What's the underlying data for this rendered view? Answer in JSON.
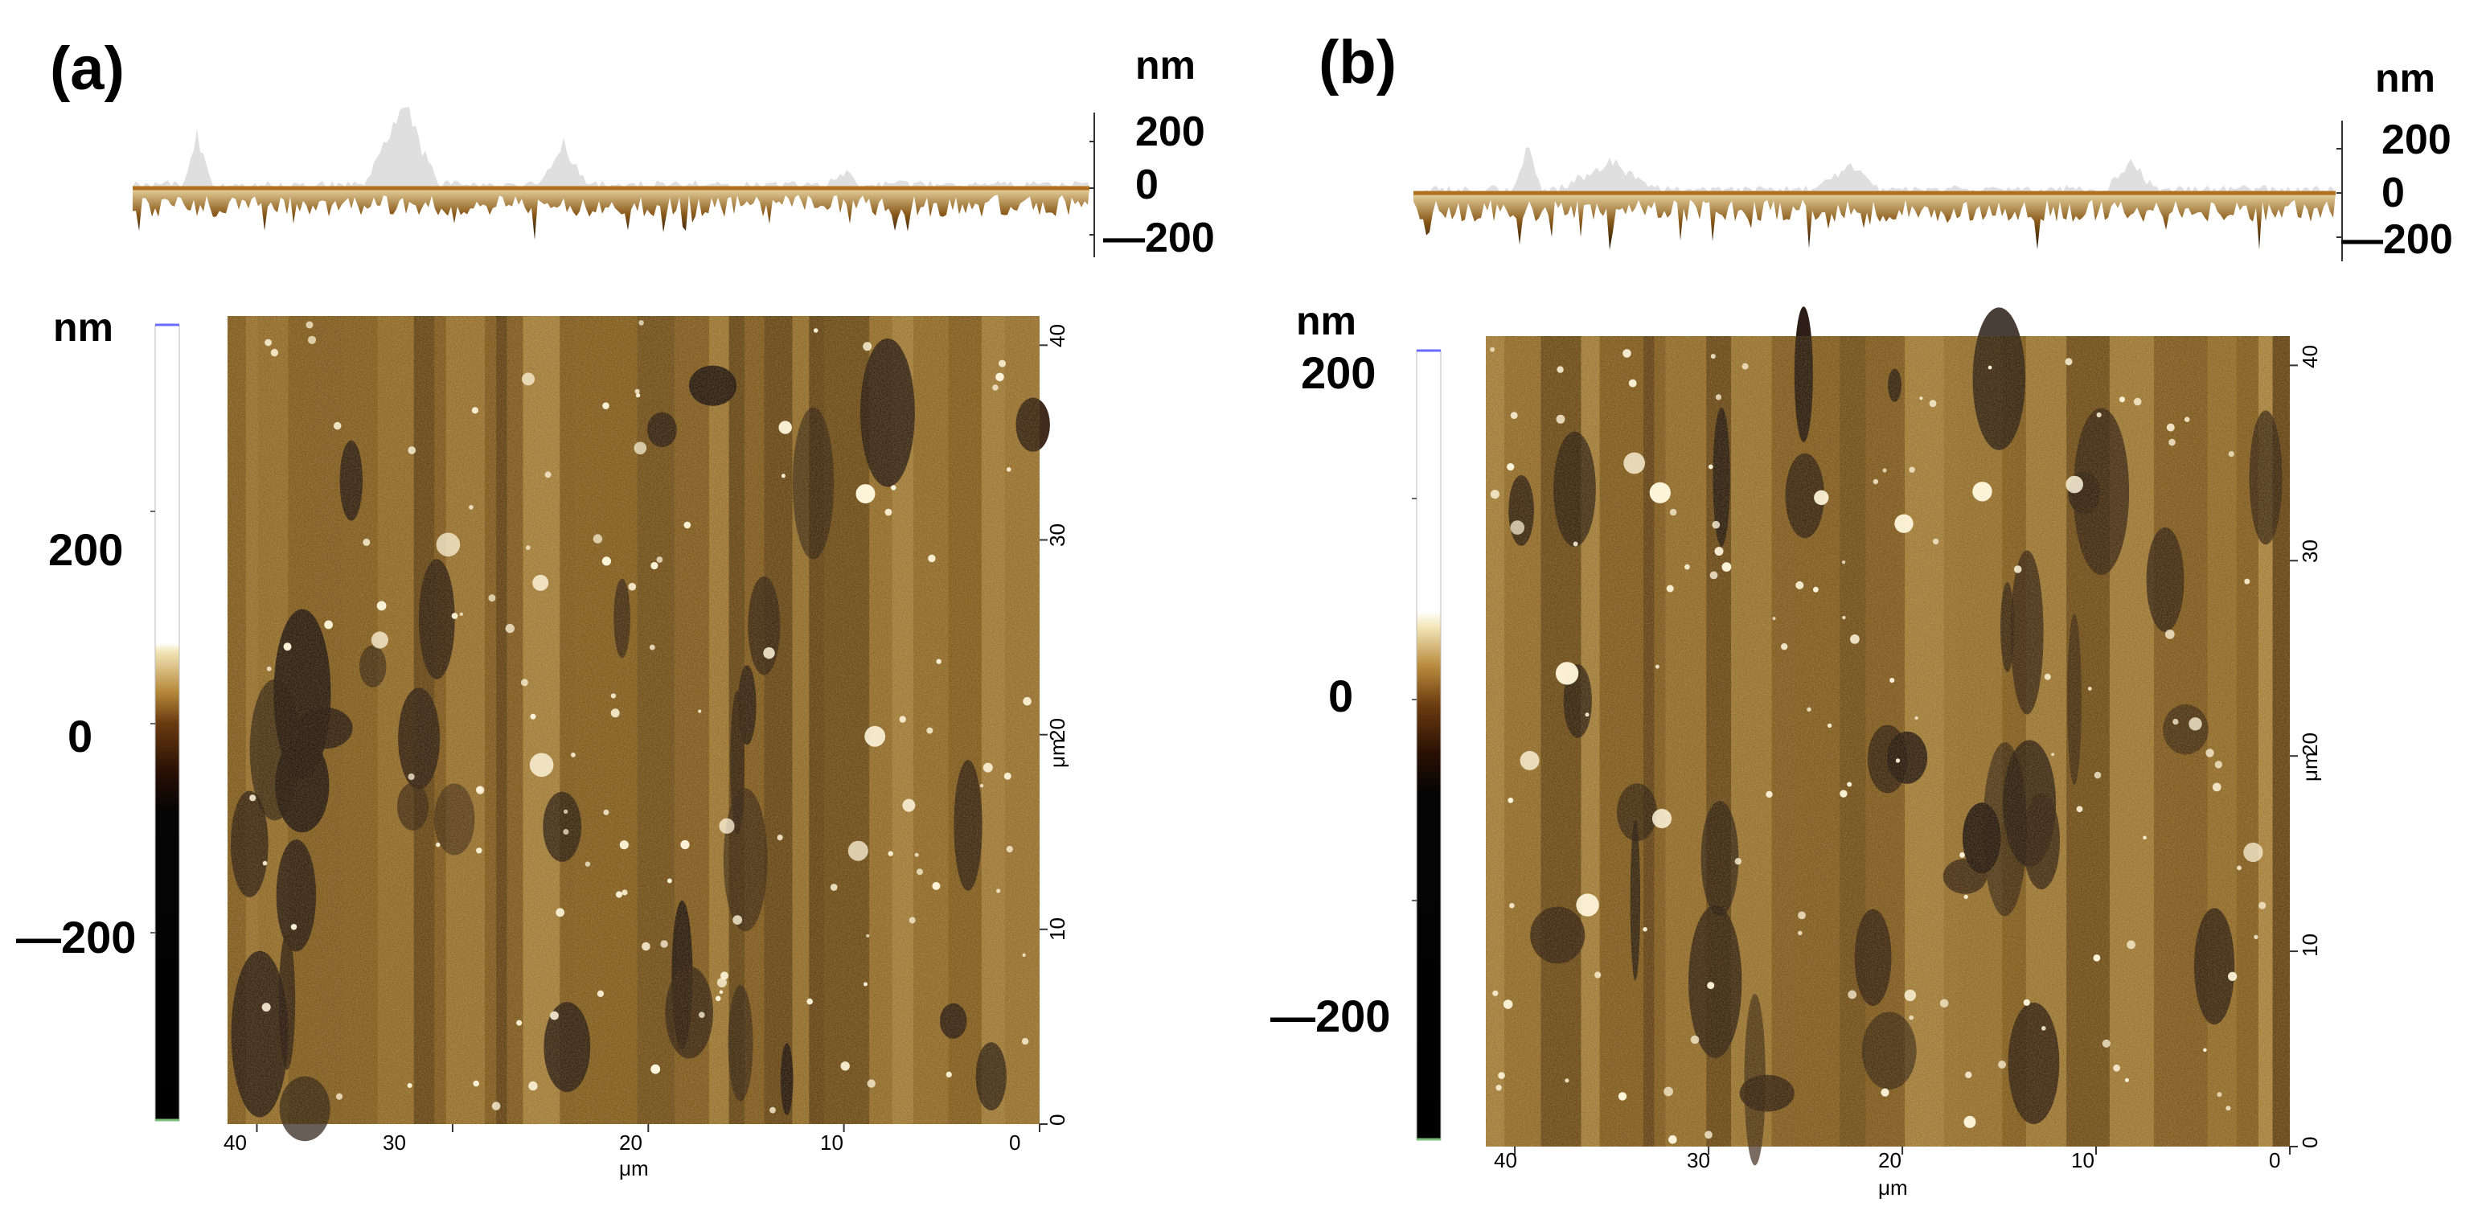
{
  "panels": [
    {
      "id": "a",
      "label": "(a)",
      "profile": {
        "unit": "nm",
        "ticks": [
          "200",
          "0",
          "200"
        ]
      },
      "colorbar": {
        "unit": "nm",
        "ticks": [
          "200",
          "0",
          "200"
        ]
      },
      "x_axis": {
        "ticks": [
          "40",
          "30",
          "20",
          "10",
          "0"
        ],
        "unit": "μm"
      },
      "y_axis": {
        "ticks": [
          "40",
          "30",
          "20",
          "10",
          "0"
        ],
        "unit": "μm"
      }
    },
    {
      "id": "b",
      "label": "(b)",
      "profile": {
        "unit": "nm",
        "ticks": [
          "200",
          "0",
          "200"
        ]
      },
      "colorbar": {
        "unit": "nm",
        "ticks": [
          "200",
          "0",
          "200"
        ]
      },
      "x_axis": {
        "ticks": [
          "40",
          "30",
          "20",
          "10",
          "0"
        ],
        "unit": "μm"
      },
      "y_axis": {
        "ticks": [
          "40",
          "30",
          "20",
          "10",
          "0"
        ],
        "unit": "μm"
      }
    }
  ]
}
